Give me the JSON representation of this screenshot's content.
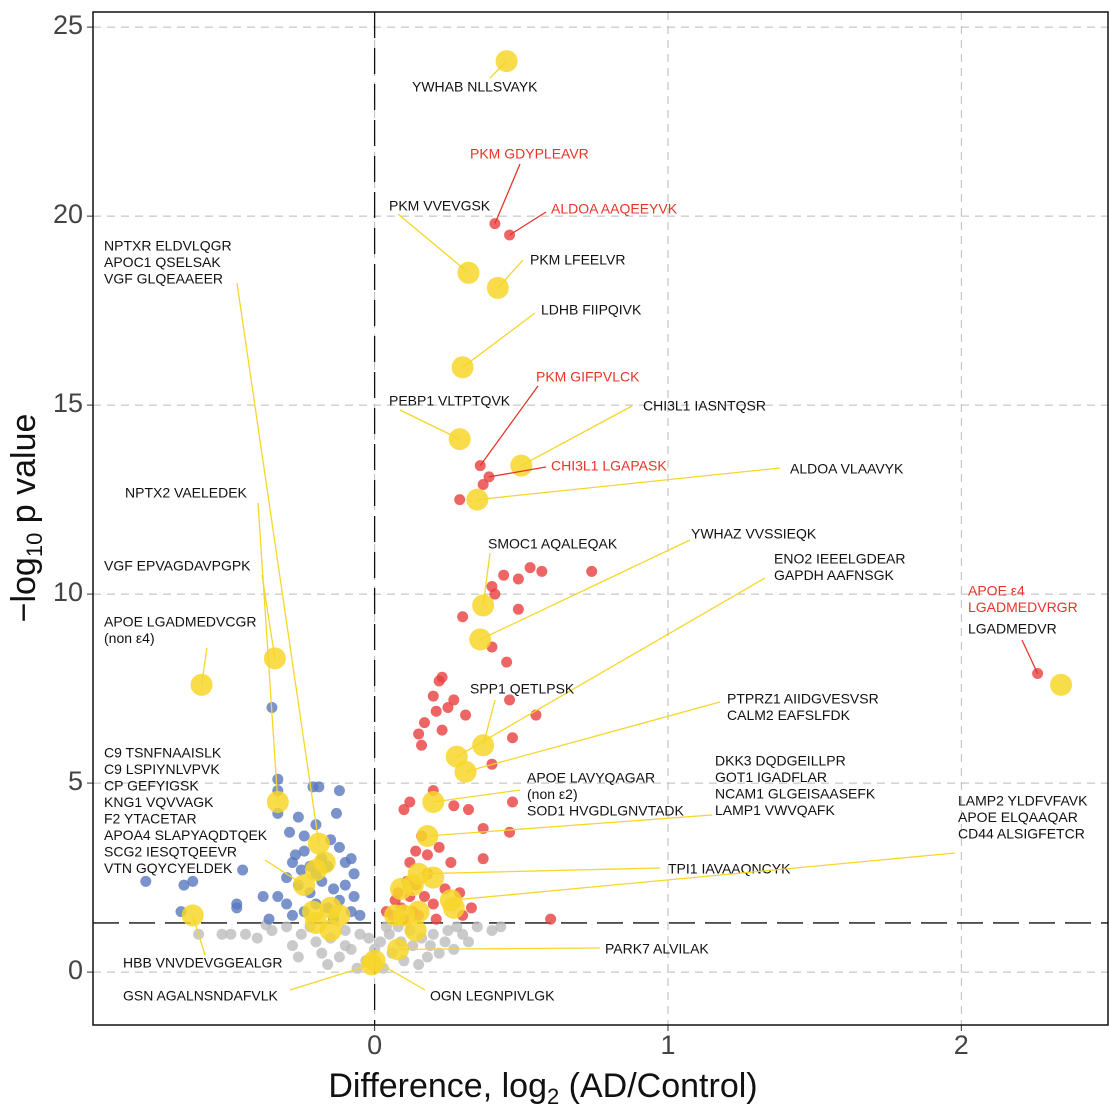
{
  "chart_data": {
    "type": "scatter",
    "x_label": [
      "Difference, log",
      "2",
      " (AD/Control)"
    ],
    "y_label": [
      "−log",
      "10",
      " p value"
    ],
    "xlim": [
      -0.96,
      2.5
    ],
    "ylim": [
      -1.4,
      25.4
    ],
    "xticks": [
      0,
      1,
      2
    ],
    "yticks": [
      0,
      5,
      10,
      15,
      20,
      25
    ],
    "grid": true,
    "threshold": {
      "x": 0,
      "y": 1.3
    },
    "series": [
      {
        "color": "#bdbdbd",
        "size": "small",
        "x": [
          -0.6,
          -0.52,
          -0.49,
          -0.44,
          -0.4,
          -0.35,
          -0.3,
          -0.25,
          -0.2,
          -0.15,
          -0.1,
          -0.05,
          -0.18,
          -0.12,
          -0.08,
          -0.03,
          0.02,
          0.05,
          0.08,
          0.12,
          0.16,
          0.2,
          0.25,
          0.3,
          0.35,
          0.27,
          0.22,
          0.18,
          0.1,
          0.06,
          0.13,
          -0.22,
          -0.28,
          0.4,
          0.43,
          0.15,
          -0.06,
          0.03,
          -0.16,
          0.09,
          -0.1,
          0.24,
          -0.37,
          0.32,
          0.0,
          0.04,
          -0.02,
          0.19,
          0.28,
          -0.26
        ],
        "values": [
          1.0,
          1.0,
          1.0,
          1.0,
          0.9,
          1.1,
          1.2,
          1.0,
          0.8,
          0.9,
          1.1,
          1.0,
          0.5,
          0.4,
          0.6,
          0.3,
          0.8,
          1.0,
          1.2,
          1.1,
          0.9,
          1.0,
          1.1,
          1.0,
          1.2,
          0.6,
          0.5,
          0.4,
          0.3,
          0.5,
          0.7,
          1.2,
          0.7,
          1.1,
          1.2,
          0.2,
          0.1,
          0.1,
          0.2,
          0.8,
          0.7,
          0.8,
          1.25,
          0.8,
          0.6,
          1.2,
          0.9,
          0.7,
          1.2,
          0.4
        ]
      },
      {
        "color": "#5a78be",
        "size": "small",
        "x": [
          -0.78,
          -0.65,
          -0.62,
          -0.66,
          -0.47,
          -0.47,
          -0.38,
          -0.33,
          -0.36,
          -0.45,
          -0.35,
          -0.33,
          -0.33,
          -0.33,
          -0.29,
          -0.27,
          -0.26,
          -0.24,
          -0.21,
          -0.19,
          -0.12,
          -0.2,
          -0.15,
          -0.13,
          -0.12,
          -0.28,
          -0.25,
          -0.22,
          -0.18,
          -0.16,
          -0.1,
          -0.08,
          -0.26,
          -0.22,
          -0.18,
          -0.14,
          -0.1,
          -0.07,
          -0.3,
          -0.24,
          -0.2,
          -0.16,
          -0.12,
          -0.08,
          -0.05,
          -0.28,
          -0.14,
          -0.07,
          -0.2,
          -0.24,
          -0.3
        ],
        "values": [
          2.4,
          2.3,
          2.4,
          1.6,
          1.7,
          1.8,
          2.0,
          2.0,
          1.4,
          2.7,
          7.0,
          5.1,
          4.8,
          4.2,
          3.7,
          3.1,
          4.1,
          3.6,
          4.9,
          4.9,
          4.8,
          3.9,
          3.5,
          4.2,
          3.3,
          2.9,
          2.7,
          2.8,
          3.0,
          2.8,
          2.9,
          3.0,
          2.3,
          2.1,
          2.4,
          2.2,
          2.3,
          2.0,
          1.8,
          1.6,
          1.8,
          1.7,
          1.9,
          1.6,
          1.5,
          1.5,
          1.4,
          2.6,
          2.6,
          3.2,
          2.5
        ]
      },
      {
        "color": "#e8403f",
        "size": "small",
        "x": [
          0.41,
          0.46,
          0.36,
          0.39,
          0.37,
          0.29,
          0.44,
          0.53,
          0.57,
          0.74,
          0.49,
          0.4,
          0.41,
          0.49,
          0.3,
          0.4,
          0.45,
          0.22,
          0.23,
          0.27,
          0.2,
          0.25,
          0.31,
          0.46,
          0.21,
          0.17,
          0.15,
          0.55,
          0.47,
          0.4,
          0.23,
          0.16,
          0.2,
          0.12,
          0.1,
          0.27,
          0.32,
          0.47,
          0.37,
          0.46,
          0.14,
          0.16,
          0.18,
          0.22,
          0.12,
          0.26,
          0.37,
          0.11,
          0.08,
          0.07,
          0.09,
          0.13,
          0.17,
          0.2,
          0.24,
          0.29,
          0.33,
          0.06,
          0.1,
          0.15,
          0.21,
          0.3,
          0.6,
          2.26,
          0.12,
          0.14,
          0.18,
          0.04
        ],
        "values": [
          19.8,
          19.5,
          13.4,
          13.1,
          12.9,
          12.5,
          10.5,
          10.7,
          10.6,
          10.6,
          10.4,
          10.2,
          10.0,
          9.6,
          9.4,
          8.6,
          8.2,
          7.7,
          7.8,
          7.2,
          7.3,
          7.0,
          6.8,
          7.2,
          6.9,
          6.6,
          6.3,
          6.8,
          6.2,
          5.5,
          6.4,
          6.0,
          4.8,
          4.5,
          4.3,
          4.4,
          4.3,
          4.5,
          3.8,
          3.7,
          3.2,
          3.6,
          3.1,
          3.3,
          2.9,
          2.9,
          3.0,
          2.4,
          2.1,
          1.9,
          1.7,
          1.6,
          2.0,
          1.8,
          2.2,
          2.1,
          1.7,
          1.5,
          1.4,
          1.5,
          1.4,
          1.5,
          1.4,
          7.9,
          2.0,
          2.3,
          2.6,
          1.6
        ]
      },
      {
        "color": "#f7d62a",
        "size": "large",
        "x": [
          0.45,
          0.32,
          0.42,
          0.3,
          0.29,
          0.5,
          0.35,
          0.37,
          0.36,
          2.34,
          -0.59,
          -0.34,
          0.37,
          0.28,
          0.31,
          -0.33,
          0.2,
          -0.19,
          0.18,
          0.15,
          0.26,
          -0.62,
          -0.01,
          0.0,
          0.08,
          -0.24,
          -0.17,
          -0.2,
          -0.12,
          -0.2,
          -0.15,
          -0.21,
          -0.15,
          0.1,
          0.13,
          0.2,
          0.07,
          0.15,
          0.09,
          0.14,
          0.27
        ],
        "values": [
          24.1,
          18.5,
          18.1,
          16.0,
          14.1,
          13.4,
          12.5,
          9.7,
          8.8,
          7.6,
          7.6,
          8.3,
          6.0,
          5.7,
          5.3,
          4.5,
          4.5,
          3.4,
          3.6,
          2.6,
          1.9,
          1.5,
          0.2,
          0.3,
          0.6,
          2.3,
          2.9,
          2.7,
          1.5,
          1.3,
          1.1,
          1.6,
          1.7,
          1.5,
          2.3,
          2.5,
          1.5,
          1.6,
          2.2,
          1.1,
          1.7
        ]
      }
    ],
    "annotations": [
      {
        "lines": [
          "YWHAB NLLSVAYK"
        ],
        "point": [
          0.45,
          24.1
        ]
      },
      {
        "lines": [
          "PKM GDYPLEAVR"
        ],
        "color": "#e8332a",
        "point": [
          0.41,
          19.8
        ]
      },
      {
        "lines": [
          "PKM VVEVGSK"
        ],
        "point": [
          0.32,
          18.5
        ]
      },
      {
        "lines": [
          "ALDOA AAQEEYVK"
        ],
        "color": "#e8332a",
        "point": [
          0.46,
          19.5
        ]
      },
      {
        "lines": [
          "PKM LFEELVR"
        ],
        "point": [
          0.42,
          18.1
        ]
      },
      {
        "lines": [
          "LDHB FIIPQIVK"
        ],
        "point": [
          0.3,
          16.0
        ]
      },
      {
        "lines": [
          "PKM GIFPVLCK"
        ],
        "color": "#e8332a",
        "point": [
          0.36,
          13.4
        ]
      },
      {
        "lines": [
          "PEBP1 VLTPTQVK"
        ],
        "point": [
          0.29,
          14.1
        ]
      },
      {
        "lines": [
          "CHI3L1 IASNTQSR"
        ],
        "point": [
          0.5,
          13.4
        ]
      },
      {
        "lines": [
          "CHI3L1 LGAPASK"
        ],
        "color": "#e8332a",
        "point": [
          0.39,
          13.1
        ]
      },
      {
        "lines": [
          "ALDOA VLAAVYK"
        ],
        "point": [
          0.35,
          12.5
        ]
      },
      {
        "lines": [
          "NPTXR ELDVLQGR",
          "APOC1 QSELSAK",
          "VGF GLQEAAEER"
        ],
        "point": [
          -0.19,
          3.4
        ]
      },
      {
        "lines": [
          "NPTX2 VAELEDEK"
        ],
        "point": [
          -0.33,
          4.5
        ]
      },
      {
        "lines": [
          "VGF EPVAGDAVPGPK"
        ],
        "point": [
          -0.34,
          8.3
        ]
      },
      {
        "lines": [
          "APOE LGADMEDVCGR",
          "(non ε4)"
        ],
        "point": [
          -0.59,
          7.6
        ]
      },
      {
        "lines": [
          "APOE ε4",
          "LGADMEDVRGR"
        ],
        "color": "#e8332a",
        "point": [
          2.26,
          7.9
        ]
      },
      {
        "lines": [
          "LGADMEDVR"
        ]
      },
      {
        "lines": [
          "SMOC1 AQALEQAK"
        ],
        "point": [
          0.37,
          9.7
        ]
      },
      {
        "lines": [
          "YWHAZ VVSSIEQK"
        ],
        "point": [
          0.36,
          8.8
        ]
      },
      {
        "lines": [
          "ENO2 IEEELGDEAR",
          "GAPDH AAFNSGK"
        ],
        "point": [
          0.28,
          5.7
        ]
      },
      {
        "lines": [
          "SPP1 QETLPSK"
        ],
        "point": [
          0.37,
          6.0
        ]
      },
      {
        "lines": [
          "PTPRZ1 AIIDGVESVSR",
          "CALM2 EAFSLFDK"
        ],
        "point": [
          0.31,
          5.3
        ]
      },
      {
        "lines": [
          "C9 TSNFNAAISLK",
          "C9 LSPIYNLVPVK",
          "CP GEFYIGSK",
          "KNG1 VQVVAGK",
          "F2 YTACETAR",
          "APOA4 SLAPYAQDTQEK",
          "SCG2 IESQTQEEVR",
          "VTN GQYCYELDEK"
        ],
        "point": [
          -0.24,
          2.3
        ]
      },
      {
        "lines": [
          "APOE LAVYQAGAR",
          "(non ε2)",
          "SOD1 HVGDLGNVTADK"
        ],
        "point": [
          0.2,
          4.5
        ]
      },
      {
        "lines": [
          "DKK3 DQDGEILLPR",
          "GOT1 IGADFLAR",
          "NCAM1 GLGEISAASEFK",
          "LAMP1 VWVQAFK"
        ],
        "point": [
          0.18,
          3.6
        ]
      },
      {
        "lines": [
          "TPI1 IAVAAQNCYK"
        ],
        "point": [
          0.15,
          2.6
        ]
      },
      {
        "lines": [
          "LAMP2 YLDFVFAVK",
          "APOE ELQAAQAR",
          "CD44 ALSIGFETCR"
        ],
        "point": [
          0.26,
          1.9
        ]
      },
      {
        "lines": [
          "PARK7 ALVILAK"
        ],
        "point": [
          0.08,
          0.6
        ]
      },
      {
        "lines": [
          "HBB VNVDEVGGEALGR"
        ],
        "point": [
          -0.62,
          1.5
        ]
      },
      {
        "lines": [
          "GSN AGALNSNDAFVLK"
        ],
        "point": [
          -0.01,
          0.2
        ]
      },
      {
        "lines": [
          "OGN LEGNPIVLGK"
        ],
        "point": [
          0.0,
          0.3
        ]
      }
    ]
  }
}
